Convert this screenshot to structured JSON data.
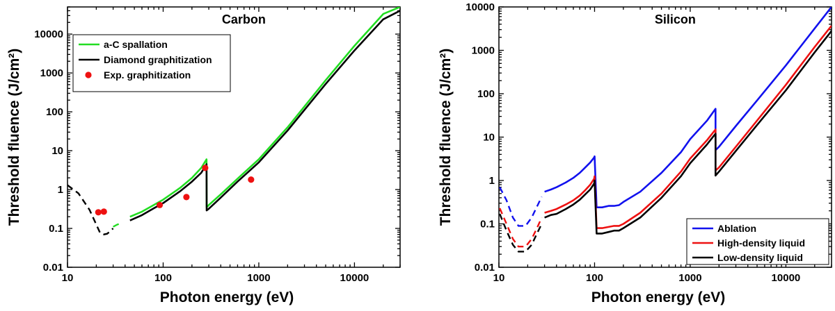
{
  "chart_data": [
    {
      "type": "line",
      "title": "Carbon",
      "xlabel": "Photon energy (eV)",
      "ylabel": "Threshold fluence (J/cm²)",
      "xscale": "log",
      "yscale": "log",
      "xlim": [
        10,
        30000
      ],
      "ylim": [
        0.01,
        50000
      ],
      "xticks": [
        "10",
        "100",
        "1000",
        "10000"
      ],
      "yticks": [
        "0.01",
        "0.1",
        "1",
        "10",
        "100",
        "1000",
        "10000"
      ],
      "legend_position": "top-left",
      "legend": [
        "a-C spallation",
        "Diamond graphitization",
        "Exp. graphitization"
      ],
      "colors": {
        "a-C spallation": "#22dd22",
        "Diamond graphitization": "#000000",
        "Exp. graphitization": "#ee1111"
      },
      "series": [
        {
          "name": "a-C spallation",
          "dashed_segment": {
            "x": [
              30,
              33,
              36
            ],
            "y": [
              0.11,
              0.125,
              0.135
            ]
          },
          "x": [
            45,
            60,
            80,
            100,
            150,
            200,
            250,
            284,
            285,
            300,
            400,
            600,
            1000,
            2000,
            5000,
            10000,
            20000,
            30000
          ],
          "y": [
            0.2,
            0.27,
            0.4,
            0.55,
            1.1,
            2.0,
            3.6,
            6.0,
            0.35,
            0.4,
            0.75,
            1.9,
            6.0,
            40,
            650,
            5000,
            33000,
            50000
          ]
        },
        {
          "name": "Diamond graphitization",
          "dashed_segment": {
            "x": [
              10,
              13,
              17,
              22,
              24,
              26,
              28,
              30
            ],
            "y": [
              1.3,
              0.8,
              0.3,
              0.075,
              0.07,
              0.073,
              0.085,
              0.1
            ]
          },
          "x": [
            45,
            60,
            80,
            100,
            150,
            200,
            250,
            284,
            285,
            300,
            400,
            600,
            1000,
            2000,
            5000,
            10000,
            20000,
            30000
          ],
          "y": [
            0.16,
            0.22,
            0.33,
            0.45,
            0.9,
            1.6,
            2.7,
            4.5,
            0.29,
            0.32,
            0.62,
            1.6,
            5.0,
            33,
            520,
            3800,
            24000,
            40000
          ]
        },
        {
          "name": "Exp. graphitization",
          "x": [
            21,
            24,
            92,
            175,
            275,
            830
          ],
          "y": [
            0.26,
            0.27,
            0.4,
            0.64,
            3.6,
            1.8
          ]
        }
      ]
    },
    {
      "type": "line",
      "title": "Silicon",
      "xlabel": "Photon energy (eV)",
      "ylabel": "Threshold fluence (J/cm²)",
      "xscale": "log",
      "yscale": "log",
      "xlim": [
        10,
        30000
      ],
      "ylim": [
        0.01,
        10000
      ],
      "xticks": [
        "10",
        "100",
        "1000",
        "10000"
      ],
      "yticks": [
        "0.01",
        "0.1",
        "1",
        "10",
        "100",
        "1000",
        "10000"
      ],
      "legend_position": "bottom-right",
      "legend": [
        "Ablation",
        "High-density liquid",
        "Low-density liquid"
      ],
      "colors": {
        "Ablation": "#1111ee",
        "High-density liquid": "#ee1111",
        "Low-density liquid": "#000000"
      },
      "series": [
        {
          "name": "Ablation",
          "dashed_segment": {
            "x": [
              10.2,
              12,
              14,
              16,
              19,
              22,
              25,
              28
            ],
            "y": [
              0.7,
              0.35,
              0.14,
              0.09,
              0.09,
              0.14,
              0.25,
              0.42
            ]
          },
          "x": [
            30,
            35,
            40,
            50,
            60,
            70,
            80,
            90,
            99,
            100,
            105,
            120,
            140,
            160,
            180,
            200,
            300,
            500,
            800,
            1000,
            1500,
            1838,
            1840,
            2000,
            3000,
            5000,
            10000,
            20000,
            30000
          ],
          "y": [
            0.55,
            0.62,
            0.7,
            0.9,
            1.15,
            1.5,
            2.0,
            2.6,
            3.4,
            3.6,
            0.24,
            0.24,
            0.26,
            0.26,
            0.27,
            0.32,
            0.55,
            1.5,
            4.5,
            9,
            24,
            45,
            5,
            6,
            18,
            70,
            450,
            3200,
            10000
          ]
        },
        {
          "name": "High-density liquid",
          "dashed_segment": {
            "x": [
              10.2,
              12,
              14,
              16,
              19,
              22,
              25,
              28
            ],
            "y": [
              0.23,
              0.1,
              0.045,
              0.03,
              0.03,
              0.045,
              0.08,
              0.14
            ]
          },
          "x": [
            30,
            35,
            40,
            50,
            60,
            70,
            80,
            90,
            99,
            100,
            105,
            120,
            140,
            160,
            180,
            200,
            300,
            500,
            800,
            1000,
            1500,
            1838,
            1840,
            2000,
            3000,
            5000,
            10000,
            20000,
            30000
          ],
          "y": [
            0.18,
            0.2,
            0.22,
            0.28,
            0.35,
            0.45,
            0.6,
            0.8,
            1.1,
            1.25,
            0.08,
            0.08,
            0.085,
            0.09,
            0.09,
            0.1,
            0.18,
            0.5,
            1.6,
            3.2,
            8.5,
            15,
            1.7,
            2.0,
            6.0,
            24,
            160,
            1200,
            3700
          ]
        },
        {
          "name": "Low-density liquid",
          "dashed_segment": {
            "x": [
              10.2,
              12,
              14,
              16,
              19,
              22,
              25,
              28
            ],
            "y": [
              0.17,
              0.07,
              0.033,
              0.023,
              0.023,
              0.033,
              0.06,
              0.1
            ]
          },
          "x": [
            30,
            35,
            40,
            50,
            60,
            70,
            80,
            90,
            99,
            100,
            105,
            120,
            140,
            160,
            180,
            200,
            300,
            500,
            800,
            1000,
            1500,
            1838,
            1840,
            2000,
            3000,
            5000,
            10000,
            20000,
            30000
          ],
          "y": [
            0.14,
            0.16,
            0.17,
            0.22,
            0.28,
            0.36,
            0.48,
            0.62,
            0.85,
            1.0,
            0.06,
            0.06,
            0.065,
            0.07,
            0.07,
            0.08,
            0.14,
            0.4,
            1.25,
            2.5,
            6.8,
            12,
            1.3,
            1.6,
            4.8,
            19,
            120,
            900,
            2800
          ]
        }
      ]
    }
  ]
}
